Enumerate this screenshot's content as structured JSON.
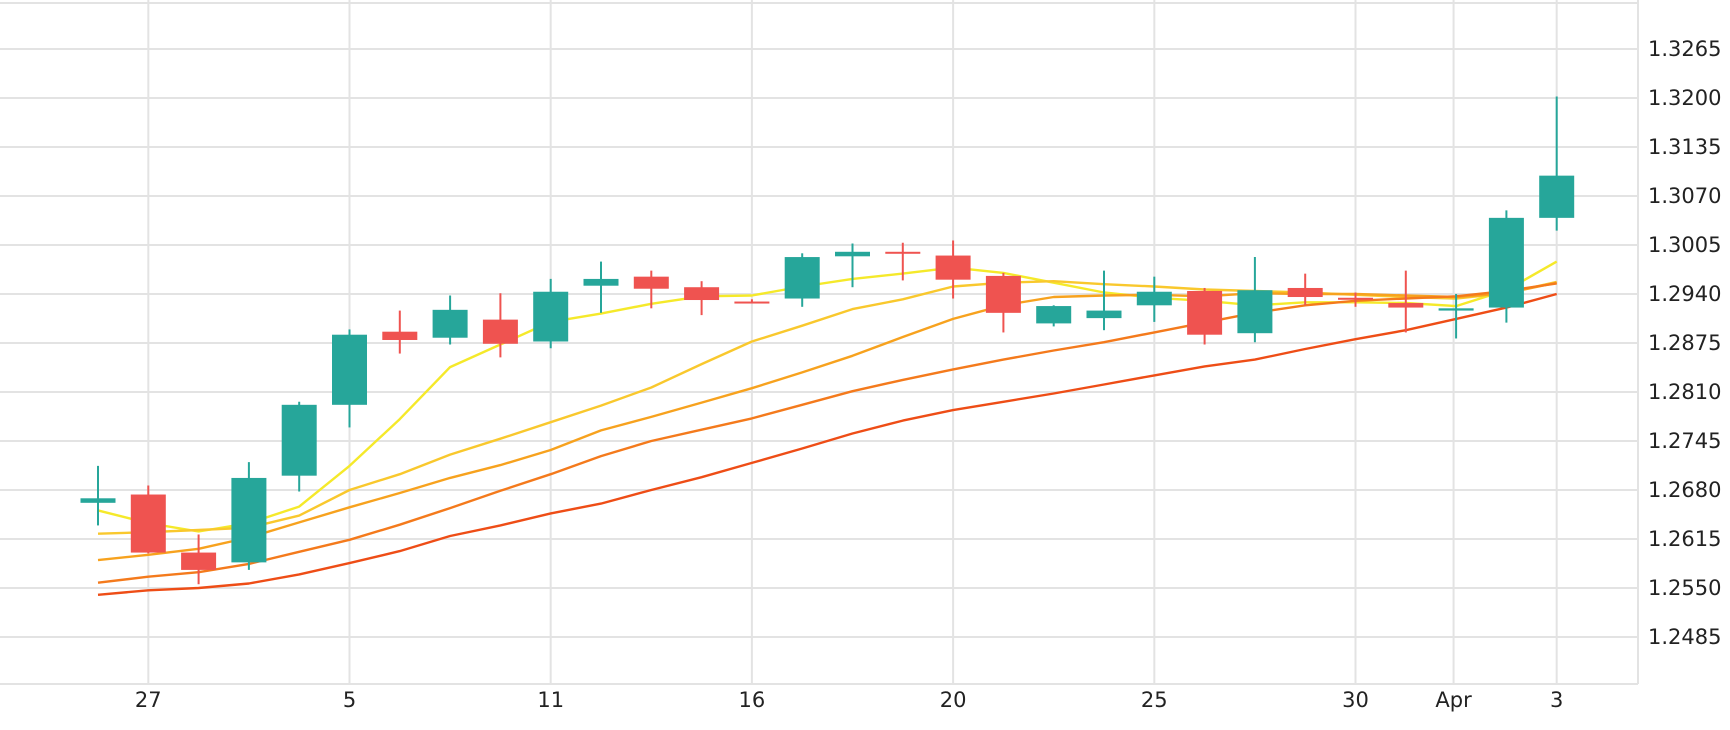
{
  "chart_data": {
    "type": "candlestick",
    "title": "",
    "xlabel": "",
    "ylabel": "",
    "grid": true,
    "ylim": [
      1.242,
      1.333
    ],
    "y_ticks": [
      "1.3265",
      "1.3200",
      "1.3135",
      "1.3070",
      "1.3005",
      "1.2940",
      "1.2875",
      "1.2810",
      "1.2745",
      "1.2680",
      "1.2615",
      "1.2550",
      "1.2485"
    ],
    "x_ticks": [
      {
        "label": "27",
        "index": 1
      },
      {
        "label": "5",
        "index": 5
      },
      {
        "label": "11",
        "index": 9
      },
      {
        "label": "16",
        "index": 13
      },
      {
        "label": "20",
        "index": 17
      },
      {
        "label": "25",
        "index": 21
      },
      {
        "label": "30",
        "index": 25
      },
      {
        "label": "Apr",
        "index": 26.95
      },
      {
        "label": "3",
        "index": 29
      }
    ],
    "candles": [
      {
        "o": 1.2663,
        "h": 1.2712,
        "l": 1.2633,
        "c": 1.2669
      },
      {
        "o": 1.2674,
        "h": 1.2686,
        "l": 1.2596,
        "c": 1.2597
      },
      {
        "o": 1.2597,
        "h": 1.2621,
        "l": 1.2555,
        "c": 1.2574
      },
      {
        "o": 1.2584,
        "h": 1.2717,
        "l": 1.2574,
        "c": 1.2696
      },
      {
        "o": 1.2699,
        "h": 1.2797,
        "l": 1.2678,
        "c": 1.2793
      },
      {
        "o": 1.2793,
        "h": 1.2893,
        "l": 1.2763,
        "c": 1.2886
      },
      {
        "o": 1.289,
        "h": 1.2918,
        "l": 1.2861,
        "c": 1.2879
      },
      {
        "o": 1.2882,
        "h": 1.2938,
        "l": 1.2873,
        "c": 1.2919
      },
      {
        "o": 1.2906,
        "h": 1.2941,
        "l": 1.2856,
        "c": 1.2874
      },
      {
        "o": 1.2877,
        "h": 1.296,
        "l": 1.2868,
        "c": 1.2943
      },
      {
        "o": 1.2951,
        "h": 1.2983,
        "l": 1.2915,
        "c": 1.296
      },
      {
        "o": 1.2963,
        "h": 1.2971,
        "l": 1.2921,
        "c": 1.2947
      },
      {
        "o": 1.2949,
        "h": 1.2957,
        "l": 1.2912,
        "c": 1.2932
      },
      {
        "o": 1.293,
        "h": 1.2933,
        "l": 1.2928,
        "c": 1.2929
      },
      {
        "o": 1.2934,
        "h": 1.2994,
        "l": 1.2923,
        "c": 1.2989
      },
      {
        "o": 1.299,
        "h": 1.3007,
        "l": 1.2949,
        "c": 1.2996
      },
      {
        "o": 1.2996,
        "h": 1.3008,
        "l": 1.2958,
        "c": 1.2995
      },
      {
        "o": 1.2991,
        "h": 1.3011,
        "l": 1.2934,
        "c": 1.2959
      },
      {
        "o": 1.2964,
        "h": 1.2968,
        "l": 1.2889,
        "c": 1.2915
      },
      {
        "o": 1.2901,
        "h": 1.2925,
        "l": 1.2897,
        "c": 1.2924
      },
      {
        "o": 1.2908,
        "h": 1.2971,
        "l": 1.2892,
        "c": 1.2918
      },
      {
        "o": 1.2925,
        "h": 1.2963,
        "l": 1.2903,
        "c": 1.2943
      },
      {
        "o": 1.2944,
        "h": 1.2948,
        "l": 1.2873,
        "c": 1.2886
      },
      {
        "o": 1.2888,
        "h": 1.2989,
        "l": 1.2876,
        "c": 1.2945
      },
      {
        "o": 1.2948,
        "h": 1.2967,
        "l": 1.2925,
        "c": 1.2936
      },
      {
        "o": 1.2935,
        "h": 1.2942,
        "l": 1.2923,
        "c": 1.2933
      },
      {
        "o": 1.2928,
        "h": 1.2971,
        "l": 1.2889,
        "c": 1.2922
      },
      {
        "o": 1.2918,
        "h": 1.294,
        "l": 1.2881,
        "c": 1.2921
      },
      {
        "o": 1.2922,
        "h": 1.3051,
        "l": 1.2902,
        "c": 1.3041
      },
      {
        "o": 1.3041,
        "h": 1.3202,
        "l": 1.3024,
        "c": 1.3097
      }
    ],
    "series": [
      {
        "color": "#f5e92a",
        "values": [
          1.2653,
          1.2636,
          1.2625,
          1.2636,
          1.2658,
          1.2712,
          1.2774,
          1.2843,
          1.2873,
          1.2903,
          1.2914,
          1.2927,
          1.2937,
          1.2938,
          1.295,
          1.296,
          1.2967,
          1.2975,
          1.2968,
          1.2955,
          1.2942,
          1.2935,
          1.2931,
          1.2925,
          1.2929,
          1.2929,
          1.2928,
          1.2924,
          1.2945,
          1.2983
        ]
      },
      {
        "color": "#f9c82d",
        "values": [
          1.2622,
          1.2624,
          1.2627,
          1.263,
          1.2646,
          1.268,
          1.2701,
          1.2727,
          1.2748,
          1.277,
          1.2792,
          1.2816,
          1.2847,
          1.2877,
          1.2898,
          1.292,
          1.2933,
          1.295,
          1.2955,
          1.2957,
          1.2953,
          1.295,
          1.2946,
          1.2944,
          1.2942,
          1.2939,
          1.2936,
          1.2934,
          1.2941,
          1.2956
        ]
      },
      {
        "color": "#f7a21e",
        "values": [
          1.2587,
          1.2594,
          1.2602,
          1.2617,
          1.2637,
          1.2657,
          1.2676,
          1.2696,
          1.2713,
          1.2733,
          1.2759,
          1.2777,
          1.2796,
          1.2815,
          1.2836,
          1.2858,
          1.2883,
          1.2907,
          1.2925,
          1.2936,
          1.2938,
          1.2939,
          1.2937,
          1.2941,
          1.294,
          1.294,
          1.2938,
          1.2936,
          1.2941,
          1.2955
        ]
      },
      {
        "color": "#f47a1c",
        "values": [
          1.2557,
          1.2565,
          1.2571,
          1.2582,
          1.2598,
          1.2614,
          1.2634,
          1.2656,
          1.2679,
          1.2701,
          1.2725,
          1.2745,
          1.276,
          1.2775,
          1.2793,
          1.2811,
          1.2826,
          1.284,
          1.2853,
          1.2865,
          1.2876,
          1.2889,
          1.2902,
          1.2915,
          1.2925,
          1.2931,
          1.2934,
          1.2937,
          1.2944,
          1.2954
        ]
      },
      {
        "color": "#ee4d16",
        "values": [
          1.2541,
          1.2547,
          1.255,
          1.2556,
          1.2568,
          1.2583,
          1.2599,
          1.2619,
          1.2633,
          1.2649,
          1.2662,
          1.268,
          1.2697,
          1.2716,
          1.2735,
          1.2755,
          1.2772,
          1.2786,
          1.2797,
          1.2808,
          1.282,
          1.2832,
          1.2844,
          1.2853,
          1.2867,
          1.288,
          1.2892,
          1.2907,
          1.2922,
          1.294
        ]
      }
    ],
    "up_color": "#26a69a",
    "down_color": "#ef5350",
    "grid_color": "#e3e3e3"
  }
}
